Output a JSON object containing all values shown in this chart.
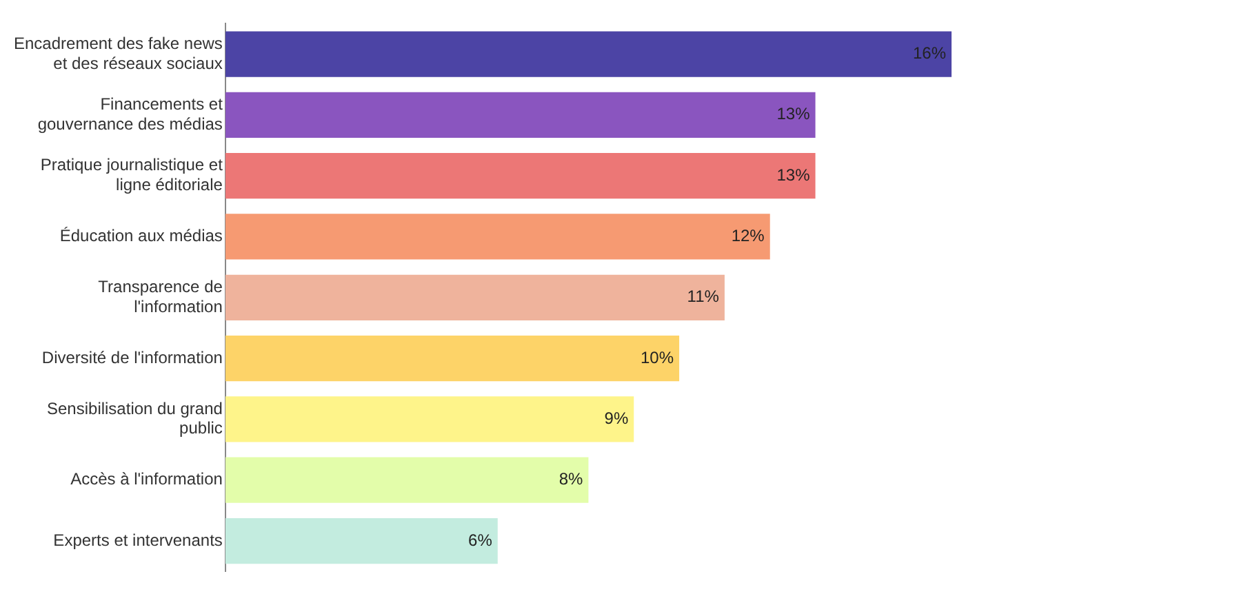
{
  "chart_data": {
    "type": "bar",
    "orientation": "horizontal",
    "categories": [
      "Encadrement des fake news et des réseaux sociaux",
      "Financements et gouvernance des médias",
      "Pratique journalistique et ligne éditoriale",
      "Éducation aux médias",
      "Transparence de l'information",
      "Diversité de l'information",
      "Sensibilisation du grand public",
      "Accès à l'information",
      "Experts et intervenants"
    ],
    "values": [
      16,
      13,
      13,
      12,
      11,
      10,
      9,
      8,
      6
    ],
    "colors": [
      "#4c44a5",
      "#8a55bf",
      "#ec7776",
      "#f69a72",
      "#efb39c",
      "#fdd368",
      "#fef48a",
      "#e3fdaa",
      "#c3ecdf"
    ],
    "value_labels": [
      "16%",
      "13%",
      "13%",
      "12%",
      "11%",
      "10%",
      "9%",
      "8%",
      "6%"
    ],
    "grid": false,
    "legend": false
  }
}
